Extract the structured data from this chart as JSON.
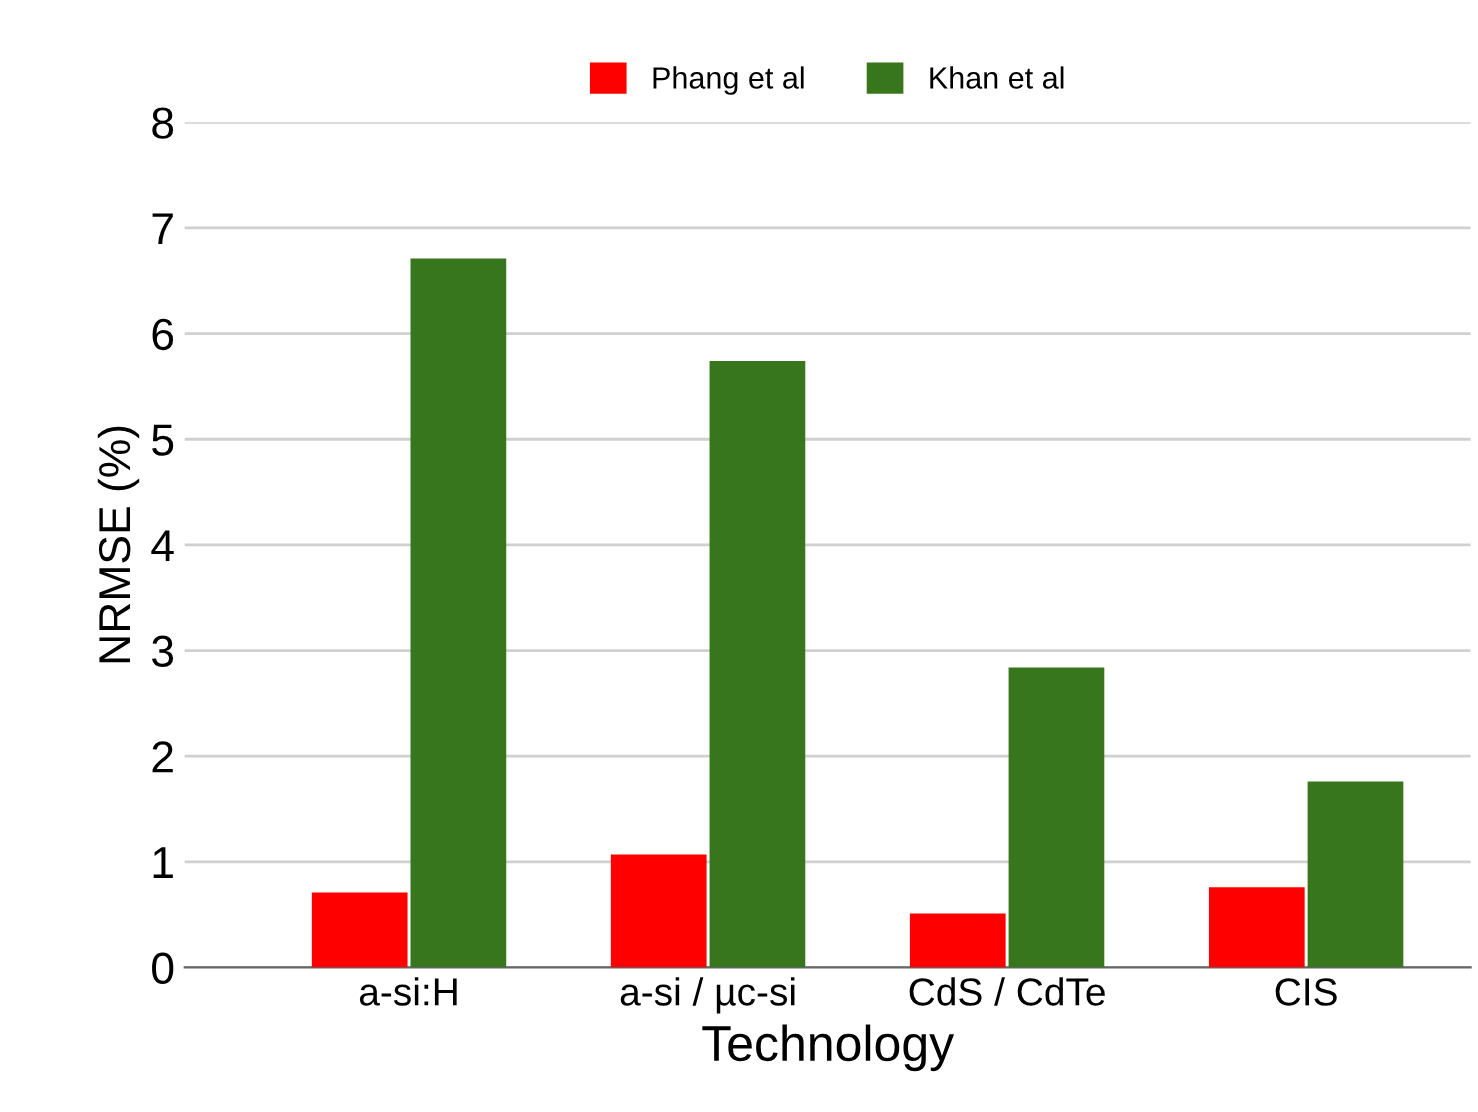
{
  "chart_data": {
    "type": "bar",
    "xlabel": "Technology",
    "ylabel": "NRMSE (%)",
    "categories": [
      "a-si:H",
      "a-si / µc-si",
      "CdS / CdTe",
      "CIS"
    ],
    "series": [
      {
        "name": "Phang et al",
        "color": "#ff0000",
        "values": [
          0.71,
          1.07,
          0.51,
          0.76
        ]
      },
      {
        "name": "Khan et al",
        "color": "#38761d",
        "values": [
          6.71,
          5.74,
          2.84,
          1.76
        ]
      }
    ],
    "ylim": [
      0,
      8
    ],
    "yticks": [
      0,
      1,
      2,
      3,
      4,
      5,
      6,
      7,
      8
    ],
    "grid": "y",
    "legend": "top"
  }
}
